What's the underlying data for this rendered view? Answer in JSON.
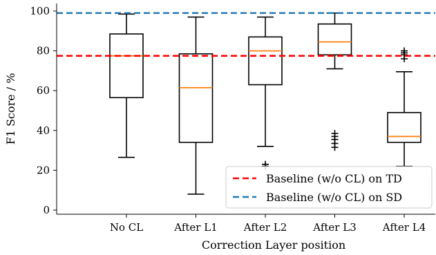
{
  "chart_data": {
    "type": "boxplot",
    "title": "",
    "xlabel": "Correction Layer position",
    "ylabel": "F1 Score / %",
    "ylim": [
      -2,
      102
    ],
    "yticks": [
      0,
      20,
      40,
      60,
      80,
      100
    ],
    "grid": false,
    "categories": [
      "No CL",
      "After L1",
      "After L2",
      "After L3",
      "After L4"
    ],
    "boxes": [
      {
        "category": "No CL",
        "whisker_low": 26.5,
        "q1": 56.5,
        "median": 77.5,
        "q3": 88.5,
        "whisker_high": 98.5,
        "outliers": []
      },
      {
        "category": "After L1",
        "whisker_low": 8,
        "q1": 34,
        "median": 61.5,
        "q3": 78.5,
        "whisker_high": 97,
        "outliers": []
      },
      {
        "category": "After L2",
        "whisker_low": 32,
        "q1": 63,
        "median": 80,
        "q3": 87,
        "whisker_high": 97,
        "outliers": [
          22,
          23
        ]
      },
      {
        "category": "After L3",
        "whisker_low": 71,
        "q1": 78,
        "median": 84.5,
        "q3": 93.5,
        "whisker_high": 99,
        "outliers": [
          31.5,
          33.5,
          35.5,
          37,
          38.5
        ]
      },
      {
        "category": "After L4",
        "whisker_low": 22,
        "q1": 34,
        "median": 37,
        "q3": 49,
        "whisker_high": 69.5,
        "outliers": [
          76,
          78,
          79,
          80
        ]
      }
    ],
    "baselines": [
      {
        "name": "Baseline (w/o CL) on TD",
        "value": 77.5,
        "color": "#ff0000"
      },
      {
        "name": "Baseline (w/o CL) on SD",
        "value": 99,
        "color": "#1f77b4"
      }
    ],
    "legend_position": "bottom-right",
    "median_color": "#ff7f0e"
  }
}
